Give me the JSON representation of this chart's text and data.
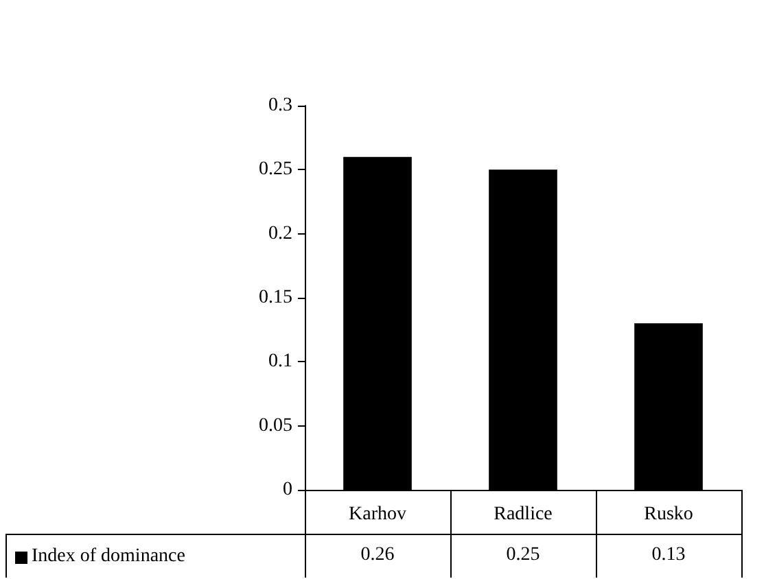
{
  "chart_data": {
    "type": "bar",
    "categories": [
      "Karhov",
      "Radlice",
      "Rusko"
    ],
    "series": [
      {
        "name": "Index of dominance",
        "color": "#000000",
        "values": [
          0.26,
          0.25,
          0.13
        ]
      }
    ],
    "ylim": [
      0,
      0.3
    ],
    "yticks": [
      0,
      0.05,
      0.1,
      0.15,
      0.2,
      0.25,
      0.3
    ],
    "grid": false,
    "legend": "bottom left",
    "data_labels": true
  }
}
